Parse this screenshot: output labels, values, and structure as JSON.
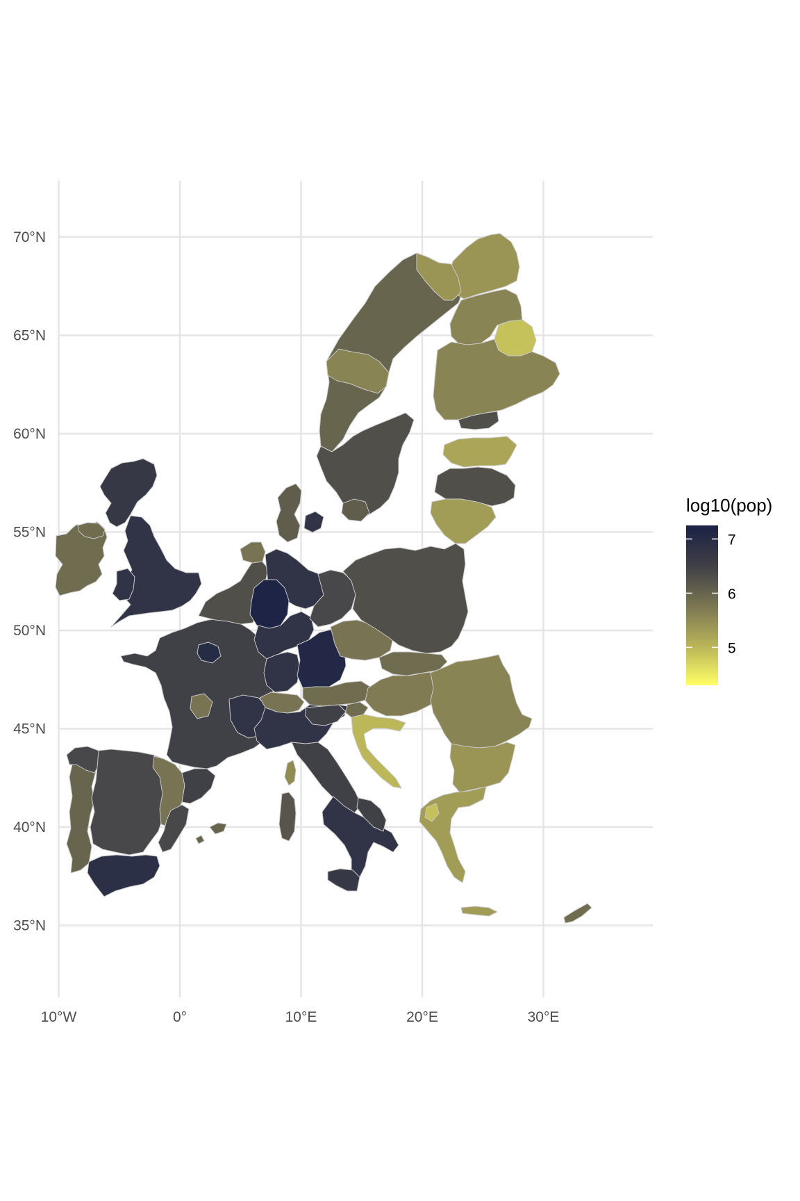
{
  "chart_data": {
    "type": "choropleth",
    "legend": {
      "title": "log10(pop)",
      "breaks": [
        7,
        6,
        5
      ],
      "labels": [
        "7",
        "6",
        "5"
      ],
      "range": [
        4.3,
        7.25
      ],
      "colors": [
        "#1b2245",
        "#3f3f47",
        "#7a7552",
        "#b8b358",
        "#ffff66"
      ]
    },
    "x_ticks": [
      {
        "value": -10,
        "label": "10°W"
      },
      {
        "value": 0,
        "label": "0°"
      },
      {
        "value": 10,
        "label": "10°E"
      },
      {
        "value": 20,
        "label": "20°E"
      },
      {
        "value": 30,
        "label": "30°E"
      }
    ],
    "y_ticks": [
      {
        "value": 70,
        "label": "70°N"
      },
      {
        "value": 65,
        "label": "65°N"
      },
      {
        "value": 60,
        "label": "60°N"
      },
      {
        "value": 55,
        "label": "55°N"
      },
      {
        "value": 50,
        "label": "50°N"
      },
      {
        "value": 45,
        "label": "45°N"
      },
      {
        "value": 40,
        "label": "40°N"
      },
      {
        "value": 35,
        "label": "35°N"
      }
    ],
    "lon_range": [
      -10,
      39
    ],
    "lat_range": [
      32,
      73
    ],
    "grid": true,
    "regions": [
      {
        "name": "Ireland",
        "value": 5.9
      },
      {
        "name": "UK Scotland",
        "value": 6.7
      },
      {
        "name": "UK England",
        "value": 6.8
      },
      {
        "name": "Portugal",
        "value": 6.0
      },
      {
        "name": "Spain North",
        "value": 6.4
      },
      {
        "name": "Spain Andalusia",
        "value": 6.9
      },
      {
        "name": "France",
        "value": 6.5
      },
      {
        "name": "Paris",
        "value": 7.0
      },
      {
        "name": "Benelux",
        "value": 6.3
      },
      {
        "name": "Germany NRW",
        "value": 7.2
      },
      {
        "name": "Germany Bavaria",
        "value": 7.1
      },
      {
        "name": "Germany North",
        "value": 6.8
      },
      {
        "name": "Germany East",
        "value": 6.4
      },
      {
        "name": "Denmark",
        "value": 6.1
      },
      {
        "name": "Switzerland",
        "value": 5.8
      },
      {
        "name": "Italy North",
        "value": 6.8
      },
      {
        "name": "Italy South",
        "value": 6.5
      },
      {
        "name": "Sardinia",
        "value": 6.2
      },
      {
        "name": "Corsica",
        "value": 5.5
      },
      {
        "name": "Sicily",
        "value": 6.7
      },
      {
        "name": "Poland",
        "value": 6.3
      },
      {
        "name": "Czechia",
        "value": 5.8
      },
      {
        "name": "Austria",
        "value": 5.9
      },
      {
        "name": "Hungary",
        "value": 5.7
      },
      {
        "name": "Slovakia",
        "value": 5.9
      },
      {
        "name": "Romania",
        "value": 5.6
      },
      {
        "name": "Bulgaria",
        "value": 5.4
      },
      {
        "name": "Greece",
        "value": 5.3
      },
      {
        "name": "Croatia",
        "value": 5.0
      },
      {
        "name": "Lithuania",
        "value": 5.3
      },
      {
        "name": "Latvia",
        "value": 6.3
      },
      {
        "name": "Estonia",
        "value": 5.2
      },
      {
        "name": "Sweden North",
        "value": 6.0
      },
      {
        "name": "Sweden South",
        "value": 6.3
      },
      {
        "name": "Finland North",
        "value": 5.4
      },
      {
        "name": "Finland Kainuu",
        "value": 4.9
      },
      {
        "name": "Finland South",
        "value": 5.6
      },
      {
        "name": "Cyprus",
        "value": 5.9
      },
      {
        "name": "Balearics",
        "value": 6.0
      }
    ]
  }
}
